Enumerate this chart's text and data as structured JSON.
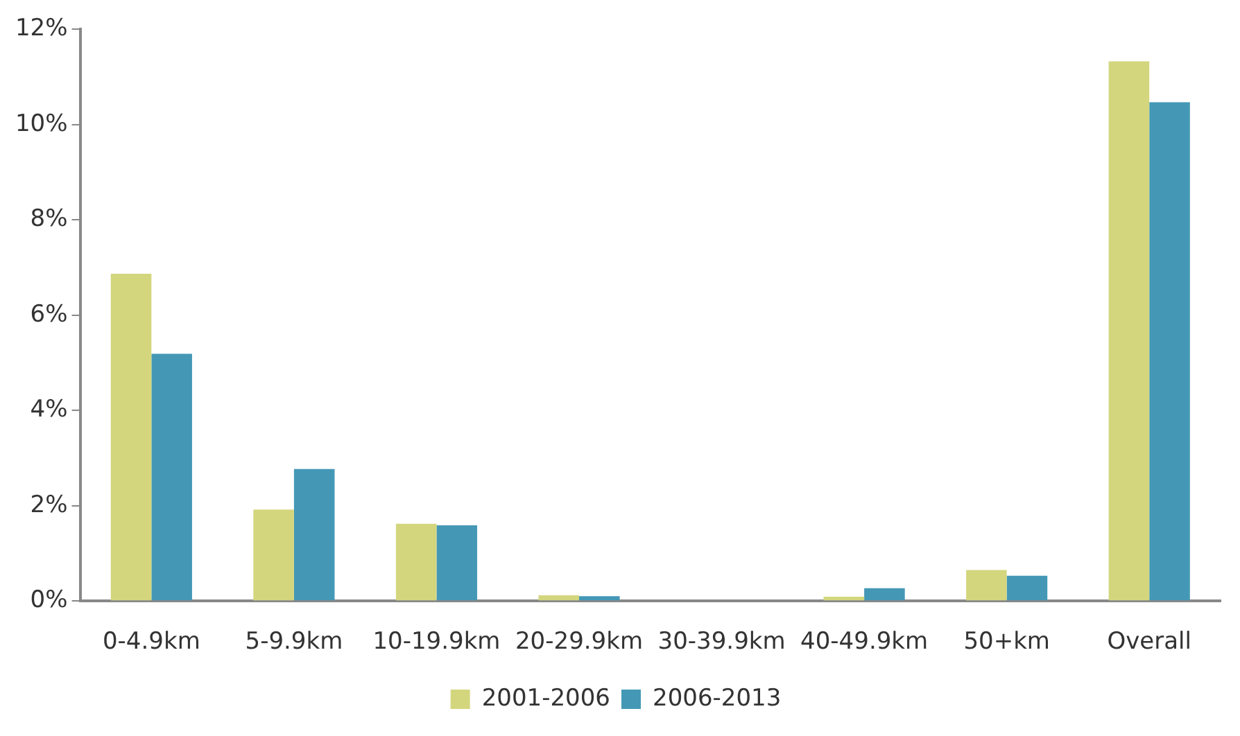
{
  "chart_data": {
    "type": "bar",
    "categories": [
      "0-4.9km",
      "5-9.9km",
      "10-19.9km",
      "20-29.9km",
      "30-39.9km",
      "40-49.9km",
      "50+km",
      "Overall"
    ],
    "series": [
      {
        "name": "2001-2006",
        "color": "#d4d67e",
        "values": [
          6.87,
          1.92,
          1.62,
          0.12,
          0,
          0.09,
          0.65,
          11.33
        ]
      },
      {
        "name": "2006-2013",
        "color": "#4498b6",
        "values": [
          5.19,
          2.77,
          1.59,
          0.1,
          0,
          0.27,
          0.53,
          10.47
        ]
      }
    ],
    "ylim": [
      0,
      12
    ],
    "yticks": [
      {
        "value": 0,
        "label": "0%"
      },
      {
        "value": 2,
        "label": "2%"
      },
      {
        "value": 4,
        "label": "4%"
      },
      {
        "value": 6,
        "label": "6%"
      },
      {
        "value": 8,
        "label": "8%"
      },
      {
        "value": 10,
        "label": "10%"
      },
      {
        "value": 12,
        "label": "12%"
      }
    ],
    "grid": false,
    "legend": "bottom"
  }
}
